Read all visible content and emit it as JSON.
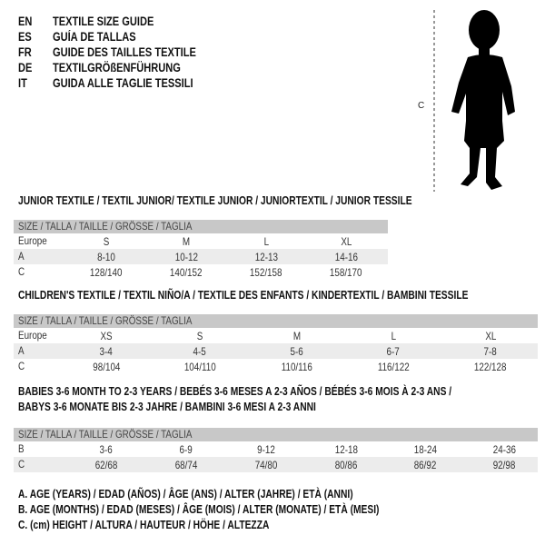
{
  "header": [
    {
      "code": "EN",
      "text": "TEXTILE SIZE GUIDE"
    },
    {
      "code": "ES",
      "text": "GUÍA DE TALLAS"
    },
    {
      "code": "FR",
      "text": "GUIDE DES TAILLES TEXTILE"
    },
    {
      "code": "DE",
      "text": "TEXTILGRÖßENFÜHRUNG"
    },
    {
      "code": "IT",
      "text": "GUIDA ALLE TAGLIE TESSILI"
    }
  ],
  "figure": {
    "label": "C"
  },
  "junior": {
    "title": "JUNIOR TEXTILE / TEXTIL JUNIOR/ TEXTILE JUNIOR / JUNIORTEXTIL / JUNIOR TESSILE",
    "size_header": "SIZE / TALLA / TAILLE / GRÖSSE / TAGLIA",
    "rows": [
      {
        "label": "Europe",
        "cells": [
          "S",
          "M",
          "L",
          "XL"
        ]
      },
      {
        "label": "A",
        "cells": [
          "8-10",
          "10-12",
          "12-13",
          "14-16"
        ]
      },
      {
        "label": "C",
        "cells": [
          "128/140",
          "140/152",
          "152/158",
          "158/170"
        ]
      }
    ]
  },
  "children": {
    "title": "CHILDREN'S TEXTILE / TEXTIL NIÑO/A / TEXTILE DES ENFANTS / KINDERTEXTIL / BAMBINI TESSILE",
    "size_header": "SIZE / TALLA / TAILLE / GRÖSSE / TAGLIA",
    "rows": [
      {
        "label": "Europe",
        "cells": [
          "XS",
          "S",
          "M",
          "L",
          "XL"
        ]
      },
      {
        "label": "A",
        "cells": [
          "3-4",
          "4-5",
          "5-6",
          "6-7",
          "7-8"
        ]
      },
      {
        "label": "C",
        "cells": [
          "98/104",
          "104/110",
          "110/116",
          "116/122",
          "122/128"
        ]
      }
    ]
  },
  "babies": {
    "title_line1": "BABIES 3-6 MONTH TO 2-3 YEARS / BEBÉS 3-6 MESES A 2-3 AÑOS / BÉBÉS 3-6 MOIS À 2-3 ANS /",
    "title_line2": "BABYS 3-6 MONATE BIS 2-3 JAHRE / BAMBINI 3-6 MESI A 2-3 ANNI",
    "size_header": "SIZE / TALLA / TAILLE / GRÖSSE / TAGLIA",
    "rows": [
      {
        "label": "B",
        "cells": [
          "3-6",
          "6-9",
          "9-12",
          "12-18",
          "18-24",
          "24-36"
        ]
      },
      {
        "label": "C",
        "cells": [
          "62/68",
          "68/74",
          "74/80",
          "80/86",
          "86/92",
          "92/98"
        ]
      }
    ]
  },
  "legend": [
    "A. AGE (YEARS) / EDAD (AÑOS) / ÂGE (ANS) / ALTER (JAHRE) / ETÀ (ANNI)",
    "B. AGE (MONTHS) / EDAD (MESES) / ÂGE (MOIS) / ALTER (MONATE) / ETÀ (MESI)",
    "C. (cm) HEIGHT / ALTURA / HAUTEUR / HÖHE / ALTEZZA"
  ]
}
